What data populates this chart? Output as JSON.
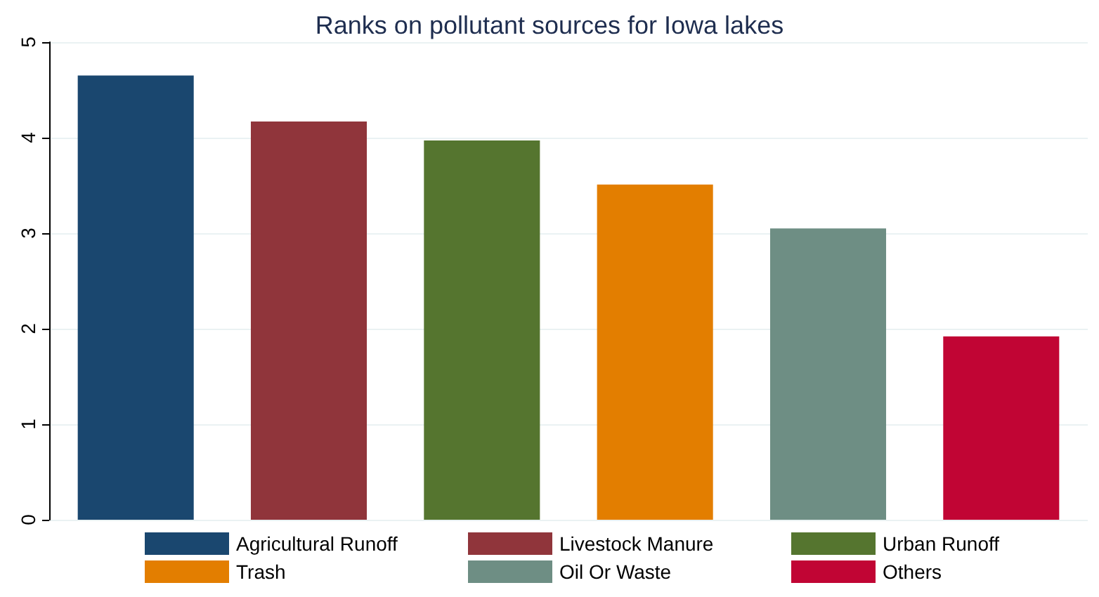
{
  "chart_data": {
    "type": "bar",
    "title": "Ranks on pollutant sources for Iowa lakes",
    "categories": [
      null,
      null,
      null,
      null,
      null,
      null
    ],
    "series": [
      {
        "name": "Agricultural Runoff",
        "color": "#1a476f",
        "values": [
          4.65,
          null,
          null,
          null,
          null,
          null
        ]
      },
      {
        "name": "Livestock Manure",
        "color": "#90353b",
        "values": [
          null,
          4.17,
          null,
          null,
          null,
          null
        ]
      },
      {
        "name": "Urban Runoff",
        "color": "#55752f",
        "values": [
          null,
          null,
          3.97,
          null,
          null,
          null
        ]
      },
      {
        "name": "Trash",
        "color": "#e37e00",
        "values": [
          null,
          null,
          null,
          3.51,
          null,
          null
        ]
      },
      {
        "name": "Oil Or Waste",
        "color": "#6e8e84",
        "values": [
          null,
          null,
          null,
          null,
          3.05,
          null
        ]
      },
      {
        "name": "Others",
        "color": "#c10534",
        "values": [
          null,
          null,
          null,
          null,
          null,
          1.92
        ]
      }
    ],
    "ylim": [
      0,
      5
    ],
    "yticks": [
      0,
      1,
      2,
      3,
      4,
      5
    ],
    "grid": "y",
    "legend": "bottom"
  }
}
